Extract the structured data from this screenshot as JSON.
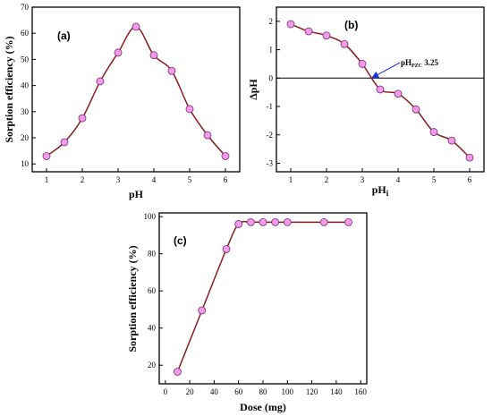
{
  "chart_data": [
    {
      "panel": "(a)",
      "type": "line",
      "marker": "circle",
      "xlabel": "pH",
      "ylabel": "Sorption efficiency (%)",
      "xlim": [
        0.6,
        6.4
      ],
      "ylim": [
        7,
        70
      ],
      "xticks": [
        1,
        2,
        3,
        4,
        5,
        6
      ],
      "yticks": [
        10,
        20,
        30,
        40,
        50,
        60,
        70
      ],
      "grid": false,
      "series": [
        {
          "x": [
            1,
            1.5,
            2,
            2.5,
            3,
            3.5,
            4,
            4.5,
            5,
            5.5,
            6
          ],
          "y": [
            13,
            18.3,
            27.5,
            41.6,
            52.6,
            62.5,
            51.6,
            45.6,
            31,
            21,
            13
          ]
        }
      ]
    },
    {
      "panel": "(b)",
      "type": "line",
      "marker": "circle",
      "xlabel": "pHi",
      "ylabel": "ΔpH",
      "xlim": [
        0.6,
        6.4
      ],
      "ylim": [
        -3.3,
        2.5
      ],
      "xticks": [
        1,
        2,
        3,
        4,
        5,
        6
      ],
      "yticks": [
        -3,
        -2,
        -1,
        0,
        1,
        2
      ],
      "zero_line": true,
      "grid": false,
      "annotation": {
        "text": "pHPZC 3.25",
        "x": 3.25,
        "y": 0
      },
      "series": [
        {
          "x": [
            1,
            1.5,
            2,
            2.5,
            3,
            3.5,
            4,
            4.5,
            5,
            5.5,
            6
          ],
          "y": [
            1.9,
            1.65,
            1.5,
            1.2,
            0.5,
            -0.4,
            -0.55,
            -1.1,
            -1.9,
            -2.2,
            -2.8
          ]
        }
      ]
    },
    {
      "panel": "(c)",
      "type": "line",
      "marker": "circle",
      "xlabel": "Dose (mg)",
      "ylabel": "Sorption efficiency (%)",
      "xlim": [
        -5,
        165
      ],
      "ylim": [
        10,
        102
      ],
      "xticks": [
        0,
        20,
        40,
        60,
        80,
        100,
        120,
        140,
        160
      ],
      "yticks": [
        20,
        40,
        60,
        80,
        100
      ],
      "grid": false,
      "series": [
        {
          "x": [
            10,
            30,
            50,
            60,
            70,
            80,
            90,
            100,
            130,
            150
          ],
          "y": [
            16.5,
            49.5,
            82.5,
            96,
            97,
            97,
            97,
            97,
            97,
            97
          ]
        }
      ]
    }
  ],
  "style": {
    "line_color": "#8b1a1a",
    "marker_fill": "#f29be8",
    "marker_stroke": "#7a2a7a",
    "arrow_color": "#1f2fd6"
  }
}
